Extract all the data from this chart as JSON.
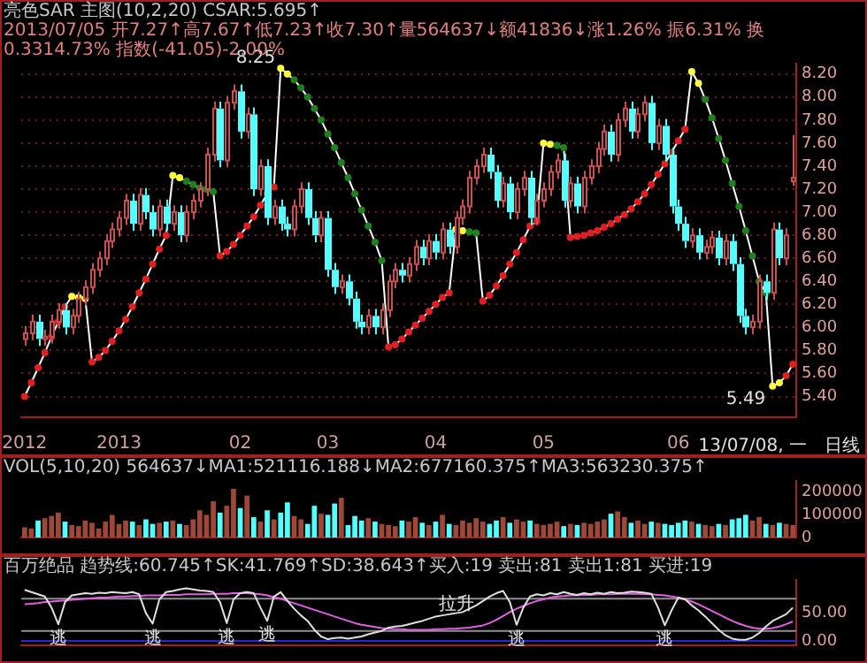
{
  "chart_data": [
    {
      "type": "candlestick",
      "title": "亮色SAR 主图(10,2,20) CSAR:5.695↑",
      "subtitle": "2013/07/05 开7.27↑高7.67↑低7.23↑收7.30↑量564637↓额41836↓涨1.26% 振6.31% 换0.3314.73% 指数(-41.05)-2.00%",
      "categories": [
        "2012",
        null,
        null,
        null,
        null,
        null,
        null,
        null,
        null,
        null,
        null,
        null,
        null,
        null,
        "2013",
        null,
        null,
        null,
        null,
        null,
        null,
        null,
        null,
        null,
        null,
        null,
        null,
        null,
        null,
        null,
        null,
        null,
        "02",
        null,
        null,
        null,
        null,
        null,
        null,
        null,
        null,
        null,
        null,
        null,
        null,
        "03",
        null,
        null,
        null,
        null,
        null,
        null,
        null,
        null,
        null,
        null,
        null,
        null,
        null,
        null,
        null,
        "04",
        null,
        null,
        null,
        null,
        null,
        null,
        null,
        null,
        null,
        null,
        null,
        null,
        null,
        null,
        null,
        "05",
        null,
        null,
        null,
        null,
        null,
        null,
        null,
        null,
        null,
        null,
        null,
        null,
        null,
        null,
        null,
        null,
        null,
        null,
        null,
        "06",
        null,
        null,
        null,
        null,
        null,
        null,
        null,
        null,
        null,
        null,
        null,
        null,
        null,
        null,
        null,
        null,
        null
      ],
      "ohlc": [
        [
          5.9,
          6.01,
          5.84,
          5.95
        ],
        [
          5.95,
          6.11,
          5.89,
          6.05
        ],
        [
          6.05,
          6.11,
          5.84,
          5.9
        ],
        [
          5.9,
          5.98,
          5.84,
          5.92
        ],
        [
          5.92,
          6.11,
          5.86,
          6.05
        ],
        [
          6.05,
          6.21,
          5.99,
          6.15
        ],
        [
          6.15,
          6.21,
          5.94,
          6.0
        ],
        [
          6.0,
          6.16,
          5.94,
          6.1
        ],
        [
          6.1,
          6.31,
          6.04,
          6.25
        ],
        [
          6.25,
          6.41,
          6.19,
          6.35
        ],
        [
          6.35,
          6.56,
          6.29,
          6.5
        ],
        [
          6.5,
          6.66,
          6.44,
          6.6
        ],
        [
          6.6,
          6.81,
          6.54,
          6.75
        ],
        [
          6.75,
          6.91,
          6.69,
          6.85
        ],
        [
          6.85,
          7.01,
          6.79,
          6.95
        ],
        [
          6.95,
          7.16,
          6.89,
          7.1
        ],
        [
          7.1,
          7.16,
          6.84,
          6.9
        ],
        [
          6.9,
          7.21,
          6.84,
          7.15
        ],
        [
          7.15,
          7.21,
          6.94,
          7.0
        ],
        [
          7.0,
          7.06,
          6.79,
          6.85
        ],
        [
          6.85,
          7.11,
          6.79,
          7.05
        ],
        [
          7.05,
          7.11,
          6.84,
          6.9
        ],
        [
          6.9,
          7.06,
          6.84,
          7.0
        ],
        [
          7.0,
          7.06,
          6.74,
          6.8
        ],
        [
          6.8,
          7.06,
          6.74,
          7.0
        ],
        [
          7.0,
          7.16,
          6.94,
          7.1
        ],
        [
          7.1,
          7.26,
          7.04,
          7.2
        ],
        [
          7.2,
          7.56,
          7.14,
          7.5
        ],
        [
          7.5,
          7.96,
          7.44,
          7.9
        ],
        [
          7.9,
          7.96,
          7.39,
          7.45
        ],
        [
          7.45,
          8.01,
          7.39,
          7.95
        ],
        [
          7.95,
          8.11,
          7.89,
          8.05
        ],
        [
          8.05,
          8.11,
          7.64,
          7.7
        ],
        [
          7.7,
          7.91,
          7.64,
          7.85
        ],
        [
          7.85,
          7.91,
          7.14,
          7.2
        ],
        [
          7.2,
          7.46,
          7.14,
          7.4
        ],
        [
          7.4,
          7.46,
          6.89,
          6.95
        ],
        [
          6.95,
          7.11,
          6.89,
          7.05
        ],
        [
          7.05,
          7.11,
          6.84,
          6.9
        ],
        [
          6.9,
          6.96,
          6.79,
          6.85
        ],
        [
          6.85,
          7.11,
          6.79,
          7.05
        ],
        [
          7.05,
          7.26,
          6.99,
          7.2
        ],
        [
          7.2,
          7.26,
          6.89,
          6.95
        ],
        [
          6.95,
          7.01,
          6.74,
          6.8
        ],
        [
          6.8,
          7.01,
          6.74,
          6.95
        ],
        [
          6.95,
          7.01,
          6.44,
          6.5
        ],
        [
          6.5,
          6.56,
          6.29,
          6.35
        ],
        [
          6.35,
          6.46,
          6.29,
          6.4
        ],
        [
          6.4,
          6.46,
          6.19,
          6.25
        ],
        [
          6.25,
          6.31,
          5.99,
          6.05
        ],
        [
          6.05,
          6.11,
          5.94,
          6.0
        ],
        [
          6.0,
          6.16,
          5.94,
          6.1
        ],
        [
          6.1,
          6.16,
          5.94,
          6.0
        ],
        [
          6.0,
          6.21,
          5.94,
          6.15
        ],
        [
          6.15,
          6.46,
          6.09,
          6.4
        ],
        [
          6.4,
          6.56,
          6.34,
          6.5
        ],
        [
          6.5,
          6.56,
          6.39,
          6.45
        ],
        [
          6.45,
          6.61,
          6.39,
          6.55
        ],
        [
          6.55,
          6.76,
          6.49,
          6.7
        ],
        [
          6.7,
          6.76,
          6.54,
          6.6
        ],
        [
          6.6,
          6.81,
          6.54,
          6.75
        ],
        [
          6.75,
          6.81,
          6.59,
          6.65
        ],
        [
          6.65,
          6.91,
          6.59,
          6.85
        ],
        [
          6.85,
          6.91,
          6.64,
          6.7
        ],
        [
          6.7,
          7.01,
          6.64,
          6.95
        ],
        [
          6.95,
          7.11,
          6.89,
          7.05
        ],
        [
          7.05,
          7.36,
          6.99,
          7.3
        ],
        [
          7.3,
          7.46,
          7.24,
          7.4
        ],
        [
          7.4,
          7.56,
          7.34,
          7.5
        ],
        [
          7.5,
          7.56,
          7.29,
          7.35
        ],
        [
          7.35,
          7.41,
          7.04,
          7.1
        ],
        [
          7.1,
          7.31,
          7.04,
          7.25
        ],
        [
          7.25,
          7.31,
          6.94,
          7.0
        ],
        [
          7.0,
          7.26,
          6.94,
          7.2
        ],
        [
          7.2,
          7.36,
          7.14,
          7.3
        ],
        [
          7.3,
          7.36,
          6.89,
          6.95
        ],
        [
          6.95,
          7.16,
          6.89,
          7.1
        ],
        [
          7.1,
          7.26,
          7.04,
          7.2
        ],
        [
          7.2,
          7.41,
          7.14,
          7.35
        ],
        [
          7.35,
          7.51,
          7.29,
          7.45
        ],
        [
          7.45,
          7.51,
          7.04,
          7.1
        ],
        [
          7.1,
          7.31,
          7.04,
          7.25
        ],
        [
          7.25,
          7.31,
          6.99,
          7.05
        ],
        [
          7.05,
          7.36,
          6.99,
          7.3
        ],
        [
          7.3,
          7.46,
          7.24,
          7.4
        ],
        [
          7.4,
          7.61,
          7.34,
          7.55
        ],
        [
          7.55,
          7.76,
          7.49,
          7.7
        ],
        [
          7.7,
          7.76,
          7.44,
          7.5
        ],
        [
          7.5,
          7.86,
          7.44,
          7.8
        ],
        [
          7.8,
          7.96,
          7.74,
          7.9
        ],
        [
          7.9,
          7.96,
          7.64,
          7.7
        ],
        [
          7.7,
          7.91,
          7.64,
          7.85
        ],
        [
          7.85,
          8.01,
          7.79,
          7.95
        ],
        [
          7.95,
          8.01,
          7.54,
          7.6
        ],
        [
          7.6,
          7.81,
          7.54,
          7.75
        ],
        [
          7.75,
          7.81,
          7.44,
          7.5
        ],
        [
          7.5,
          7.56,
          6.99,
          7.05
        ],
        [
          7.05,
          7.11,
          6.84,
          6.9
        ],
        [
          6.9,
          6.96,
          6.69,
          6.75
        ],
        [
          6.75,
          6.86,
          6.69,
          6.8
        ],
        [
          6.8,
          6.86,
          6.59,
          6.65
        ],
        [
          6.65,
          6.76,
          6.59,
          6.7
        ],
        [
          6.7,
          6.84,
          6.64,
          6.78
        ],
        [
          6.78,
          6.84,
          6.54,
          6.6
        ],
        [
          6.6,
          6.81,
          6.54,
          6.75
        ],
        [
          6.75,
          6.81,
          6.49,
          6.55
        ],
        [
          6.55,
          6.61,
          6.04,
          6.1
        ],
        [
          6.1,
          6.16,
          5.94,
          6.0
        ],
        [
          6.0,
          6.11,
          5.94,
          6.05
        ],
        [
          6.05,
          6.46,
          5.99,
          6.4
        ],
        [
          6.4,
          6.46,
          6.24,
          6.3
        ],
        [
          6.3,
          6.91,
          6.24,
          6.85
        ],
        [
          6.85,
          6.91,
          6.54,
          6.6
        ],
        [
          6.6,
          6.86,
          6.54,
          6.8
        ],
        [
          7.27,
          7.67,
          7.23,
          7.3
        ]
      ],
      "series": [
        {
          "type": "line",
          "color": "#ffffff",
          "values": [
            5.4,
            5.52,
            5.65,
            5.78,
            5.92,
            6.05,
            6.18,
            6.27,
            6.26,
            6.25,
            5.7,
            5.74,
            5.8,
            5.88,
            5.97,
            6.07,
            6.18,
            6.3,
            6.42,
            6.55,
            6.68,
            6.8,
            7.32,
            7.3,
            7.27,
            7.24,
            7.21,
            7.2,
            7.18,
            6.62,
            6.66,
            6.72,
            6.8,
            6.88,
            6.96,
            7.06,
            7.16,
            7.22,
            8.25,
            8.2,
            8.15,
            8.08,
            8.0,
            7.9,
            7.8,
            7.68,
            7.56,
            7.43,
            7.3,
            7.16,
            7.02,
            6.88,
            6.74,
            6.58,
            5.83,
            5.85,
            5.9,
            5.96,
            6.02,
            6.08,
            6.14,
            6.2,
            6.26,
            6.3,
            6.85,
            6.84,
            6.83,
            6.82,
            6.23,
            6.28,
            6.36,
            6.45,
            6.55,
            6.65,
            6.76,
            6.88,
            6.92,
            7.6,
            7.59,
            7.58,
            7.56,
            6.78,
            6.79,
            6.8,
            6.82,
            6.84,
            6.87,
            6.9,
            6.94,
            6.98,
            7.03,
            7.09,
            7.16,
            7.24,
            7.33,
            7.42,
            7.52,
            7.62,
            7.72,
            8.22,
            8.12,
            7.98,
            7.82,
            7.64,
            7.45,
            7.25,
            7.05,
            6.84,
            6.62,
            6.4,
            6.3,
            5.49,
            5.52,
            5.58,
            5.68
          ],
          "colors": [
            "#e02020",
            "#e02020",
            "#e02020",
            "#e02020",
            "#e02020",
            "#e02020",
            "#e02020",
            "#ffff40",
            "#ffff40",
            "#ffff40",
            "#e02020",
            "#e02020",
            "#e02020",
            "#e02020",
            "#e02020",
            "#e02020",
            "#e02020",
            "#e02020",
            "#e02020",
            "#e02020",
            "#e02020",
            "#e02020",
            "#ffff40",
            "#ffff40",
            "#208020",
            "#208020",
            "#208020",
            "#208020",
            "#208020",
            "#e02020",
            "#e02020",
            "#e02020",
            "#e02020",
            "#e02020",
            "#e02020",
            "#e02020",
            "#e02020",
            "#e02020",
            "#ffff40",
            "#ffff40",
            "#208020",
            "#208020",
            "#208020",
            "#208020",
            "#208020",
            "#208020",
            "#208020",
            "#208020",
            "#208020",
            "#208020",
            "#208020",
            "#208020",
            "#208020",
            "#208020",
            "#e02020",
            "#e02020",
            "#e02020",
            "#e02020",
            "#e02020",
            "#e02020",
            "#e02020",
            "#e02020",
            "#e02020",
            "#e02020",
            "#ffff40",
            "#ffff40",
            "#208020",
            "#208020",
            "#e02020",
            "#e02020",
            "#e02020",
            "#e02020",
            "#e02020",
            "#e02020",
            "#e02020",
            "#e02020",
            "#e02020",
            "#ffff40",
            "#ffff40",
            "#208020",
            "#208020",
            "#e02020",
            "#e02020",
            "#e02020",
            "#e02020",
            "#e02020",
            "#e02020",
            "#e02020",
            "#e02020",
            "#e02020",
            "#e02020",
            "#e02020",
            "#e02020",
            "#e02020",
            "#e02020",
            "#e02020",
            "#e02020",
            "#e02020",
            "#e02020",
            "#ffff40",
            "#ffff40",
            "#208020",
            "#208020",
            "#208020",
            "#208020",
            "#208020",
            "#208020",
            "#208020",
            "#208020",
            "#208020",
            "#208020",
            "#ffff40",
            "#ffff40",
            "#e02020",
            "#e02020"
          ]
        }
      ],
      "marker": "circle",
      "grid": "y",
      "ylim": [
        5.22,
        8.29
      ],
      "yticks": [
        {
          "value": 5.4,
          "label": "5.40"
        },
        {
          "value": 5.6,
          "label": "5.60"
        },
        {
          "value": 5.8,
          "label": "5.80"
        },
        {
          "value": 6.0,
          "label": "6.00"
        },
        {
          "value": 6.2,
          "label": "6.20"
        },
        {
          "value": 6.4,
          "label": "6.40"
        },
        {
          "value": 6.6,
          "label": "6.60"
        },
        {
          "value": 6.8,
          "label": "6.80"
        },
        {
          "value": 7.0,
          "label": "7.00"
        },
        {
          "value": 7.2,
          "label": "7.20"
        },
        {
          "value": 7.4,
          "label": "7.40"
        },
        {
          "value": 7.6,
          "label": "7.60"
        },
        {
          "value": 7.8,
          "label": "7.80"
        },
        {
          "value": 8.0,
          "label": "8.00"
        },
        {
          "value": 8.2,
          "label": "8.20"
        }
      ],
      "annotations": [
        "8.25",
        "5.49",
        "13/07/08, 一",
        "日线"
      ]
    },
    {
      "type": "bar",
      "title": "VOL(5,10,20) 564637↓MA1:521116.188↓MA2:677160.375↑MA3:563230.375↑",
      "tick_labels": "y",
      "categories": [
        null,
        null,
        null,
        null,
        null,
        null,
        null,
        null,
        null,
        null,
        null,
        null,
        null,
        null,
        null,
        null,
        null,
        null,
        null,
        null,
        null,
        null,
        null,
        null,
        null,
        null,
        null,
        null,
        null,
        null,
        null,
        null,
        null,
        null,
        null,
        null,
        null,
        null,
        null,
        null,
        null,
        null,
        null,
        null,
        null,
        null,
        null,
        null,
        null,
        null,
        null,
        null,
        null,
        null,
        null,
        null,
        null,
        null,
        null,
        null,
        null,
        null,
        null,
        null,
        null,
        null,
        null,
        null,
        null,
        null,
        null,
        null,
        null,
        null,
        null,
        null,
        null,
        null,
        null,
        null,
        null,
        null,
        null,
        null,
        null,
        null,
        null,
        null,
        null,
        null,
        null,
        null,
        null,
        null,
        null,
        null,
        null,
        null,
        null,
        null,
        null,
        null,
        null,
        null,
        null,
        null,
        null,
        null,
        null,
        null,
        null,
        null,
        null,
        null,
        null
      ],
      "values": [
        45000,
        40000,
        75000,
        85000,
        95000,
        110000,
        70000,
        55000,
        50000,
        75000,
        65000,
        40000,
        70000,
        100000,
        60000,
        75000,
        70000,
        55000,
        80000,
        60000,
        65000,
        70000,
        75000,
        60000,
        55000,
        80000,
        120000,
        100000,
        160000,
        110000,
        140000,
        215000,
        130000,
        185000,
        90000,
        70000,
        120000,
        80000,
        110000,
        155000,
        95000,
        80000,
        60000,
        140000,
        105000,
        100000,
        150000,
        175000,
        55000,
        95000,
        75000,
        85000,
        70000,
        60000,
        55000,
        50000,
        75000,
        70000,
        90000,
        65000,
        55000,
        70000,
        100000,
        60000,
        55000,
        75000,
        65000,
        85000,
        70000,
        60000,
        75000,
        90000,
        65000,
        80000,
        70000,
        75000,
        60000,
        55000,
        60000,
        70000,
        50000,
        60000,
        55000,
        65000,
        60000,
        70000,
        80000,
        105000,
        115000,
        90000,
        65000,
        75000,
        60000,
        70000,
        65000,
        60000,
        55000,
        65000,
        75000,
        70000,
        60000,
        55000,
        50000,
        60000,
        55000,
        80000,
        85000,
        100000,
        75000,
        90000,
        60000,
        55000,
        65000,
        60000,
        55000
      ],
      "colors": [
        "#a04838",
        "#a04838",
        "#54ffff",
        "#a04838",
        "#a04838",
        "#a04838",
        "#54ffff",
        "#a04838",
        "#a04838",
        "#a04838",
        "#a04838",
        "#a04838",
        "#a04838",
        "#a04838",
        "#a04838",
        "#a04838",
        "#54ffff",
        "#a04838",
        "#54ffff",
        "#54ffff",
        "#a04838",
        "#54ffff",
        "#a04838",
        "#54ffff",
        "#a04838",
        "#a04838",
        "#a04838",
        "#a04838",
        "#a04838",
        "#54ffff",
        "#a04838",
        "#a04838",
        "#54ffff",
        "#a04838",
        "#54ffff",
        "#a04838",
        "#54ffff",
        "#a04838",
        "#54ffff",
        "#54ffff",
        "#a04838",
        "#a04838",
        "#54ffff",
        "#54ffff",
        "#a04838",
        "#54ffff",
        "#54ffff",
        "#a04838",
        "#54ffff",
        "#54ffff",
        "#54ffff",
        "#a04838",
        "#54ffff",
        "#a04838",
        "#a04838",
        "#a04838",
        "#54ffff",
        "#a04838",
        "#a04838",
        "#54ffff",
        "#a04838",
        "#54ffff",
        "#a04838",
        "#54ffff",
        "#a04838",
        "#a04838",
        "#a04838",
        "#a04838",
        "#a04838",
        "#54ffff",
        "#54ffff",
        "#a04838",
        "#54ffff",
        "#a04838",
        "#a04838",
        "#54ffff",
        "#a04838",
        "#a04838",
        "#a04838",
        "#a04838",
        "#54ffff",
        "#a04838",
        "#54ffff",
        "#a04838",
        "#a04838",
        "#a04838",
        "#a04838",
        "#54ffff",
        "#a04838",
        "#a04838",
        "#54ffff",
        "#a04838",
        "#a04838",
        "#54ffff",
        "#a04838",
        "#54ffff",
        "#54ffff",
        "#54ffff",
        "#54ffff",
        "#a04838",
        "#54ffff",
        "#a04838",
        "#a04838",
        "#54ffff",
        "#a04838",
        "#54ffff",
        "#54ffff",
        "#54ffff",
        "#a04838",
        "#a04838",
        "#54ffff",
        "#a04838",
        "#54ffff",
        "#a04838",
        "#a04838"
      ],
      "ylim": [
        0,
        250000
      ],
      "yticks": [
        0,
        100000,
        200000
      ]
    },
    {
      "type": "line",
      "title": "百万绝品 趋势线:60.745↑SK:41.769↑SD:38.643↑买入:19 卖出:81 卖出1:81 买进:19",
      "tick_labels": "y",
      "categories": [
        null,
        null,
        null,
        null,
        null,
        null,
        null,
        null,
        null,
        null,
        null,
        null,
        null,
        null,
        null,
        null,
        null,
        null,
        null,
        null,
        null,
        null,
        null,
        null,
        null,
        null,
        null,
        null,
        null,
        null,
        null,
        null,
        null,
        null,
        null,
        null,
        null,
        null,
        null,
        null,
        null,
        null,
        null,
        null,
        null,
        null,
        null,
        null,
        null,
        null,
        null,
        null,
        null,
        null,
        null,
        null,
        null,
        null,
        null,
        null,
        null,
        null,
        null,
        null,
        null,
        null,
        null,
        null,
        null,
        null,
        null,
        null,
        null,
        null,
        null,
        null,
        null,
        null,
        null,
        null,
        null,
        null,
        null,
        null,
        null,
        null,
        null,
        null,
        null,
        null,
        null,
        null,
        null,
        null,
        null,
        null,
        null,
        null,
        null,
        null,
        null,
        null,
        null,
        null,
        null,
        null,
        null,
        null,
        null,
        null,
        null,
        null,
        null,
        null,
        null
      ],
      "series": [
        {
          "color": "#e0e0e0",
          "values": [
            92,
            88,
            84,
            80,
            60,
            30,
            70,
            82,
            84,
            86,
            85,
            87,
            86,
            88,
            87,
            86,
            88,
            84,
            50,
            31,
            75,
            88,
            90,
            93,
            95,
            93,
            91,
            90,
            88,
            70,
            32,
            75,
            86,
            88,
            86,
            60,
            36,
            80,
            88,
            72,
            58,
            46,
            36,
            20,
            8,
            3,
            5,
            6,
            4,
            6,
            8,
            12,
            15,
            18,
            24,
            26,
            27,
            30,
            33,
            36,
            40,
            44,
            46,
            48,
            50,
            52,
            58,
            64,
            72,
            80,
            86,
            90,
            70,
            29,
            60,
            80,
            84,
            82,
            86,
            84,
            88,
            85,
            83,
            86,
            84,
            87,
            85,
            88,
            86,
            87,
            89,
            88,
            87,
            85,
            60,
            28,
            55,
            78,
            75,
            64,
            55,
            44,
            32,
            20,
            10,
            4,
            2,
            2,
            6,
            14,
            26,
            36,
            42,
            48,
            60
          ]
        },
        {
          "color": "#e060e0",
          "values": [
            66,
            67,
            68,
            70,
            71,
            72,
            73,
            74,
            75,
            76,
            77,
            78,
            78,
            79,
            80,
            80,
            81,
            81,
            82,
            82,
            82,
            83,
            83,
            83,
            84,
            84,
            84,
            84,
            85,
            85,
            85,
            86,
            86,
            86,
            85,
            84,
            82,
            79,
            76,
            72,
            68,
            64,
            60,
            56,
            52,
            48,
            44,
            40,
            36,
            32,
            29,
            27,
            25,
            23,
            22,
            21,
            21,
            20,
            20,
            20,
            20,
            21,
            21,
            22,
            22,
            23,
            24,
            26,
            28,
            32,
            38,
            45,
            52,
            58,
            63,
            68,
            72,
            75,
            78,
            80,
            81,
            82,
            82,
            83,
            83,
            84,
            84,
            84,
            85,
            85,
            85,
            85,
            84,
            84,
            83,
            82,
            80,
            78,
            75,
            71,
            66,
            60,
            54,
            48,
            42,
            36,
            31,
            27,
            24,
            22,
            22,
            23,
            26,
            30,
            35
          ]
        }
      ],
      "ylim": [
        -8,
        110
      ],
      "yticks": [
        {
          "value": 0,
          "label": "0.00"
        },
        {
          "value": 50,
          "label": "50.00"
        }
      ],
      "ref_lines": [
        {
          "axis": "y",
          "value": 76,
          "color": "#909090"
        },
        {
          "axis": "y",
          "value": 18,
          "color": "#909090"
        },
        {
          "axis": "y",
          "value": 0,
          "color": "#2828d0"
        }
      ],
      "annotations": [
        {
          "text": "逃",
          "y": 30
        },
        {
          "text": "逃",
          "y": 31
        },
        {
          "text": "逃",
          "y": 32
        },
        {
          "text": "逃",
          "y": 36
        },
        {
          "text": "拉升",
          "y": 44
        },
        {
          "text": "逃",
          "y": 29
        },
        {
          "text": "逃",
          "y": 28
        }
      ]
    }
  ]
}
